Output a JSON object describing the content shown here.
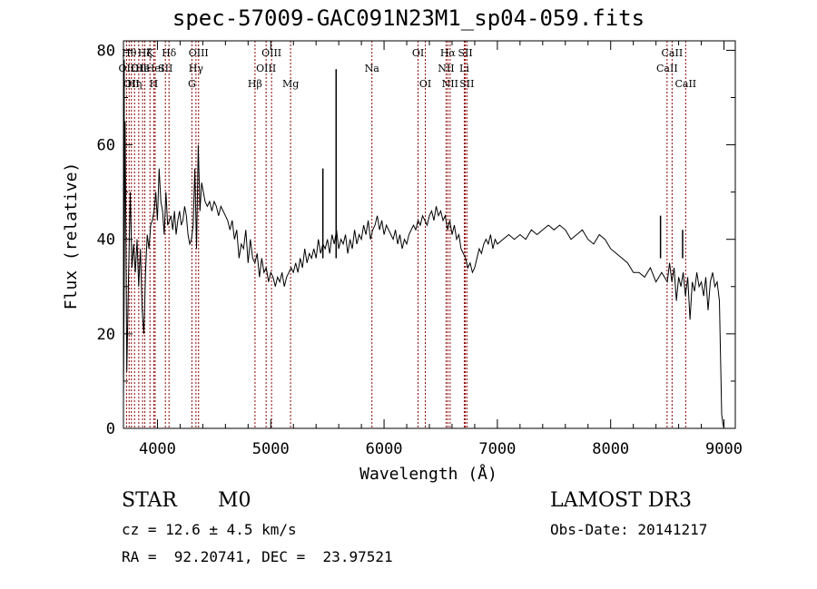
{
  "chart_data": {
    "type": "line",
    "title": "spec-57009-GAC091N23M1_sp04-059.fits",
    "xlabel": "Wavelength (Å)",
    "ylabel": "Flux (relative)",
    "xlim": [
      3700,
      9100
    ],
    "ylim": [
      0,
      82
    ],
    "xticks": [
      4000,
      5000,
      6000,
      7000,
      8000,
      9000
    ],
    "yticks": [
      0,
      20,
      40,
      60,
      80
    ],
    "series": [
      {
        "name": "spectrum",
        "x": [
          3700,
          3715,
          3730,
          3745,
          3760,
          3775,
          3790,
          3805,
          3820,
          3835,
          3850,
          3865,
          3880,
          3895,
          3910,
          3925,
          3940,
          3955,
          3970,
          3985,
          4000,
          4015,
          4030,
          4045,
          4060,
          4075,
          4090,
          4105,
          4120,
          4135,
          4150,
          4165,
          4180,
          4195,
          4210,
          4225,
          4240,
          4255,
          4270,
          4285,
          4300,
          4315,
          4330,
          4345,
          4360,
          4375,
          4390,
          4405,
          4420,
          4440,
          4460,
          4480,
          4500,
          4520,
          4540,
          4560,
          4580,
          4600,
          4620,
          4640,
          4660,
          4680,
          4700,
          4720,
          4740,
          4760,
          4780,
          4800,
          4820,
          4840,
          4860,
          4880,
          4900,
          4920,
          4940,
          4960,
          4980,
          5000,
          5020,
          5040,
          5060,
          5080,
          5100,
          5120,
          5140,
          5160,
          5180,
          5200,
          5220,
          5240,
          5260,
          5280,
          5300,
          5320,
          5340,
          5360,
          5380,
          5400,
          5420,
          5440,
          5460,
          5480,
          5500,
          5520,
          5540,
          5560,
          5580,
          5600,
          5620,
          5640,
          5660,
          5680,
          5700,
          5720,
          5740,
          5760,
          5780,
          5800,
          5820,
          5840,
          5860,
          5880,
          5900,
          5920,
          5940,
          5960,
          5980,
          6000,
          6020,
          6040,
          6060,
          6080,
          6100,
          6120,
          6140,
          6160,
          6180,
          6200,
          6220,
          6240,
          6260,
          6280,
          6300,
          6320,
          6340,
          6360,
          6380,
          6400,
          6420,
          6440,
          6460,
          6480,
          6500,
          6520,
          6540,
          6560,
          6580,
          6600,
          6620,
          6640,
          6660,
          6680,
          6700,
          6720,
          6740,
          6760,
          6780,
          6800,
          6820,
          6840,
          6860,
          6880,
          6900,
          6920,
          6940,
          6960,
          6980,
          7000,
          7050,
          7100,
          7150,
          7200,
          7250,
          7300,
          7350,
          7400,
          7450,
          7500,
          7550,
          7600,
          7650,
          7700,
          7750,
          7800,
          7850,
          7900,
          7950,
          8000,
          8050,
          8100,
          8150,
          8200,
          8250,
          8300,
          8350,
          8400,
          8450,
          8500,
          8520,
          8540,
          8560,
          8580,
          8600,
          8620,
          8640,
          8660,
          8680,
          8700,
          8720,
          8740,
          8760,
          8780,
          8800,
          8820,
          8840,
          8860,
          8880,
          8900,
          8920,
          8940,
          8960,
          8980,
          8990,
          9000
        ],
        "y": [
          6,
          65,
          12,
          32,
          50,
          34,
          39,
          33,
          40,
          30,
          38,
          25,
          20,
          33,
          41,
          38,
          43,
          44,
          46,
          50,
          44,
          55,
          48,
          46,
          41,
          50,
          43,
          44,
          45,
          42,
          46,
          41,
          44,
          46,
          43,
          44,
          47,
          45,
          41,
          39,
          40,
          43,
          55,
          38,
          60,
          46,
          52,
          50,
          48,
          47,
          48,
          46,
          48,
          47,
          45,
          47,
          46,
          45,
          44,
          42,
          44,
          40,
          42,
          36,
          39,
          38,
          42,
          35,
          40,
          36,
          35,
          37,
          32,
          36,
          33,
          34,
          31,
          33,
          32,
          30,
          32,
          31,
          33,
          30,
          32,
          33,
          34,
          33,
          35,
          33,
          36,
          34,
          38,
          35,
          37,
          36,
          38,
          36,
          40,
          37,
          39,
          38,
          40,
          37,
          41,
          39,
          42,
          38,
          40,
          39,
          41,
          37,
          40,
          38,
          42,
          39,
          41,
          40,
          43,
          41,
          44,
          40,
          42,
          43,
          45,
          42,
          44,
          41,
          43,
          42,
          41,
          40,
          42,
          39,
          41,
          38,
          40,
          39,
          41,
          42,
          43,
          42,
          44,
          43,
          45,
          44,
          43,
          45,
          46,
          44,
          47,
          45,
          46,
          44,
          45,
          42,
          44,
          41,
          43,
          40,
          41,
          38,
          37,
          36,
          34,
          35,
          33,
          34,
          36,
          38,
          37,
          39,
          40,
          39,
          41,
          38,
          40,
          39,
          40,
          41,
          40,
          41,
          40,
          42,
          41,
          42,
          43,
          42,
          43,
          42,
          40,
          41,
          42,
          40,
          39,
          41,
          40,
          38,
          37,
          36,
          35,
          33,
          33,
          32,
          34,
          31,
          33,
          31,
          35,
          31,
          34,
          27,
          32,
          30,
          33,
          28,
          32,
          23,
          31,
          29,
          33,
          30,
          31,
          28,
          32,
          25,
          31,
          33,
          30,
          31,
          27,
          3,
          1,
          0
        ]
      }
    ],
    "spikes": [
      {
        "x": 3705,
        "y": 78
      },
      {
        "x": 5460,
        "y": 55
      },
      {
        "x": 5577,
        "y": 76
      },
      {
        "x": 8440,
        "y": 45
      },
      {
        "x": 8635,
        "y": 42
      }
    ],
    "lines": [
      {
        "x": 3727,
        "label": "OII",
        "row": 1
      },
      {
        "x": 3750,
        "label": "Hθ",
        "row": 0
      },
      {
        "x": 3770,
        "label": "OII",
        "row": 2
      },
      {
        "x": 3798,
        "label": "Hη",
        "row": 2
      },
      {
        "x": 3835,
        "label": "OII",
        "row": 1
      },
      {
        "x": 3869,
        "label": "He",
        "row": 1
      },
      {
        "x": 3889,
        "label": "Hζ",
        "row": 0
      },
      {
        "x": 3934,
        "label": "K",
        "row": 0
      },
      {
        "x": 3968,
        "label": "H",
        "row": 2
      },
      {
        "x": 3980,
        "label": "HeI",
        "row": 1
      },
      {
        "x": 4070,
        "label": "SII",
        "row": 1
      },
      {
        "x": 4102,
        "label": "Hδ",
        "row": 0
      },
      {
        "x": 4304,
        "label": "G",
        "row": 2
      },
      {
        "x": 4340,
        "label": "Hγ",
        "row": 1
      },
      {
        "x": 4363,
        "label": "OIII",
        "row": 0
      },
      {
        "x": 4861,
        "label": "Hβ",
        "row": 2
      },
      {
        "x": 4959,
        "label": "OIII",
        "row": 1
      },
      {
        "x": 5007,
        "label": "OIII",
        "row": 0
      },
      {
        "x": 5175,
        "label": "Mg",
        "row": 2
      },
      {
        "x": 5893,
        "label": "Na",
        "row": 1
      },
      {
        "x": 6300,
        "label": "OI",
        "row": 0
      },
      {
        "x": 6364,
        "label": "OI",
        "row": 2
      },
      {
        "x": 6548,
        "label": "NII",
        "row": 1
      },
      {
        "x": 6563,
        "label": "Hα",
        "row": 0
      },
      {
        "x": 6583,
        "label": "NII",
        "row": 2
      },
      {
        "x": 6708,
        "label": "Li",
        "row": 1
      },
      {
        "x": 6717,
        "label": "SII",
        "row": 0
      },
      {
        "x": 6731,
        "label": "SII",
        "row": 2
      },
      {
        "x": 8498,
        "label": "CaII",
        "row": 1
      },
      {
        "x": 8542,
        "label": "CaII",
        "row": 0
      },
      {
        "x": 8662,
        "label": "CaII",
        "row": 2
      }
    ],
    "line_color": "#8b0000"
  },
  "info": {
    "object_class": "STAR",
    "subclass": "M0",
    "survey": "LAMOST DR3",
    "redshift": "cz = 12.6 ± 4.5 km/s",
    "obs_date": "Obs-Date: 20141217",
    "coords": "RA =  92.20741, DEC =  23.97521"
  }
}
